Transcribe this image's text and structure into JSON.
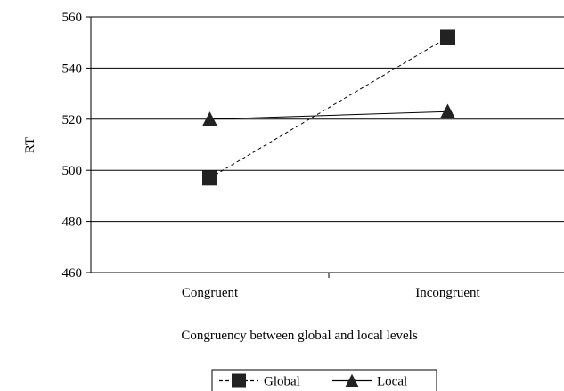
{
  "chart_data": {
    "type": "line",
    "title": "",
    "xlabel": "Congruency between global and local levels",
    "ylabel": "RT",
    "categories": [
      "Congruent",
      "Incongruent"
    ],
    "ylim": [
      460,
      560
    ],
    "yticks": [
      460,
      480,
      500,
      520,
      540,
      560
    ],
    "grid": true,
    "legend_position": "bottom-center",
    "series": [
      {
        "name": "Global",
        "values": [
          497,
          552
        ],
        "marker": "square",
        "line_style": "dashed",
        "color": "#000000"
      },
      {
        "name": "Local",
        "values": [
          520,
          523
        ],
        "marker": "triangle",
        "line_style": "solid",
        "color": "#000000"
      }
    ]
  }
}
